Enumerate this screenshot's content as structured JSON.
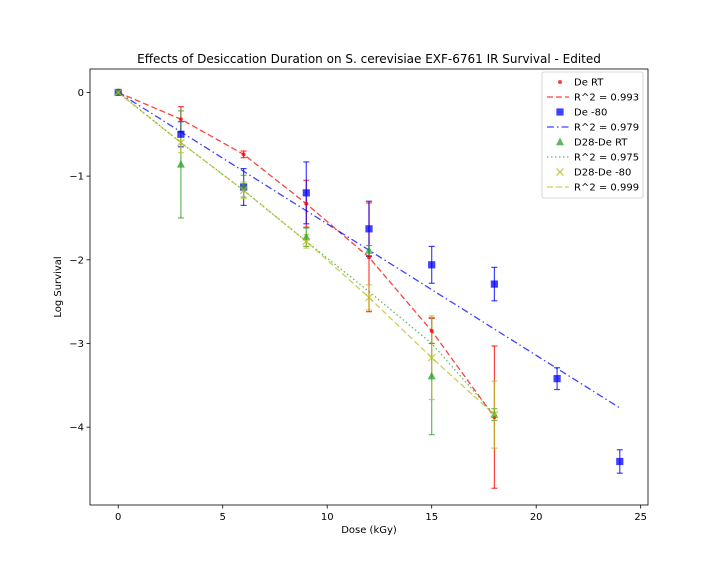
{
  "chart_data": {
    "type": "scatter",
    "title": "Effects of Desiccation Duration on S. cerevisiae EXF-6761 IR Survival - Edited",
    "xlabel": "Dose (kGy)",
    "ylabel": "Log Survival",
    "xlim": [
      -1.35,
      25.35
    ],
    "ylim": [
      -4.93,
      0.28
    ],
    "xticks": [
      0,
      5,
      10,
      15,
      20,
      25
    ],
    "xtick_labels": [
      "0",
      "5",
      "10",
      "15",
      "20",
      "25"
    ],
    "yticks": [
      0,
      -1,
      -2,
      -3,
      -4
    ],
    "ytick_labels": [
      "0",
      "−1",
      "−2",
      "−3",
      "−4"
    ],
    "grid": false,
    "legend_position": "upper right",
    "series": [
      {
        "name": "De RT",
        "marker": "point",
        "color": "#ff0000",
        "x": [
          0,
          3,
          6,
          9,
          12,
          15,
          18
        ],
        "y": [
          0.0,
          -0.32,
          -0.74,
          -1.33,
          -1.97,
          -2.85,
          -3.88
        ],
        "yerr": [
          0.02,
          0.15,
          0.04,
          0.28,
          0.65,
          0.15,
          0.85
        ],
        "fit_label": "R^2 = 0.993",
        "fit_style": "dashed",
        "fit_x": [
          0,
          3,
          6,
          9,
          12,
          15,
          18
        ],
        "fit_y": [
          0.0,
          -0.32,
          -0.74,
          -1.33,
          -1.97,
          -2.85,
          -3.88
        ]
      },
      {
        "name": "De -80",
        "marker": "square",
        "color": "#0000ff",
        "x": [
          0,
          3,
          6,
          9,
          12,
          15,
          18,
          21,
          24
        ],
        "y": [
          0.0,
          -0.5,
          -1.13,
          -1.2,
          -1.63,
          -2.06,
          -2.29,
          -3.42,
          -4.41
        ],
        "yerr": [
          0.03,
          0.15,
          0.22,
          0.37,
          0.33,
          0.22,
          0.2,
          0.13,
          0.14
        ],
        "fit_label": "R^2 = 0.979",
        "fit_style": "dashdot",
        "fit_x": [
          0,
          24
        ],
        "fit_y": [
          0.0,
          -3.77
        ]
      },
      {
        "name": "D28-De RT",
        "marker": "triangle",
        "color": "#2ca02c",
        "x": [
          0,
          3,
          6,
          9,
          12,
          15,
          18
        ],
        "y": [
          0.0,
          -0.86,
          -1.12,
          -1.73,
          -1.89,
          -3.39,
          -3.85
        ],
        "yerr": [
          0.03,
          0.64,
          0.13,
          0.11,
          0.06,
          0.7,
          0.07
        ],
        "fit_label": "R^2 = 0.975",
        "fit_style": "dotted",
        "fit_x": [
          0,
          3,
          6,
          9,
          12,
          15,
          18
        ],
        "fit_y": [
          0.0,
          -0.6,
          -1.17,
          -1.78,
          -2.38,
          -3.0,
          -3.85
        ]
      },
      {
        "name": "D28-De -80",
        "marker": "x",
        "color": "#bcbd22",
        "x": [
          0,
          3,
          6,
          9,
          12,
          15,
          18
        ],
        "y": [
          0.0,
          -0.6,
          -1.17,
          -1.78,
          -2.45,
          -3.17,
          -3.85
        ],
        "yerr": [
          0.03,
          0.12,
          0.1,
          0.08,
          0.15,
          0.5,
          0.4
        ],
        "fit_label": "R^2 = 0.999",
        "fit_style": "dashed",
        "fit_x": [
          0,
          3,
          6,
          9,
          12,
          15,
          18
        ],
        "fit_y": [
          0.0,
          -0.6,
          -1.17,
          -1.78,
          -2.45,
          -3.17,
          -3.85
        ]
      }
    ]
  }
}
